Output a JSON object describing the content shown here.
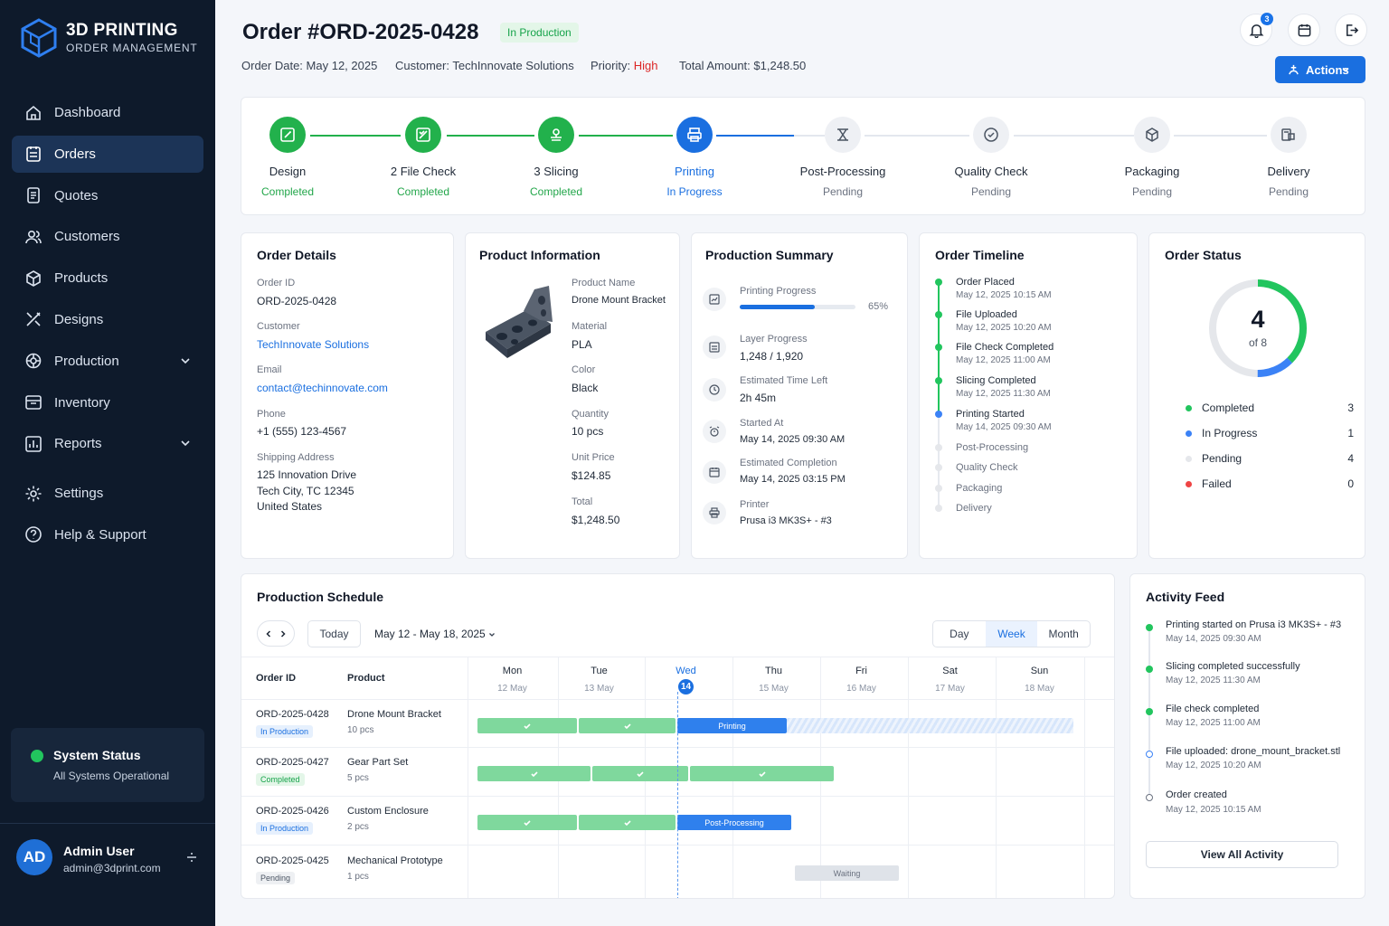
{
  "app": {
    "title": "3D PRINTING",
    "subtitle": "ORDER MANAGEMENT"
  },
  "nav": [
    {
      "label": "Dashboard",
      "icon": "home-icon"
    },
    {
      "label": "Orders",
      "icon": "clipboard-icon"
    },
    {
      "label": "Quotes",
      "icon": "document-icon"
    },
    {
      "label": "Customers",
      "icon": "users-icon"
    },
    {
      "label": "Products",
      "icon": "box-icon"
    },
    {
      "label": "Designs",
      "icon": "design-tools-icon"
    },
    {
      "label": "Production",
      "icon": "production-icon"
    },
    {
      "label": "Inventory",
      "icon": "inventory-icon"
    },
    {
      "label": "Reports",
      "icon": "chart-icon"
    },
    {
      "label": "Settings",
      "icon": "gear-icon"
    },
    {
      "label": "Help & Support",
      "icon": "help-icon"
    }
  ],
  "system": {
    "title": "System Status",
    "status": "All Systems Operational"
  },
  "user": {
    "initials": "AD",
    "name": "Admin User",
    "email": "admin@3dprint.com"
  },
  "header": {
    "title": "Order #ORD-2025-0428",
    "badge": "In Production",
    "order_date_label": "Order Date:",
    "order_date": "May 12, 2025",
    "customer_label": "Customer:",
    "customer": "TechInnovate Solutions",
    "priority_label": "Priority:",
    "priority": "High",
    "total_label": "Total Amount:",
    "total": "$1,248.50",
    "notifications": "3",
    "actions_label": "Actions"
  },
  "steps": [
    {
      "name": "Design",
      "status": "Completed",
      "icon": "design-icon"
    },
    {
      "name": "2 File Check",
      "status": "Completed",
      "icon": "file-check-icon"
    },
    {
      "name": "3 Slicing",
      "status": "Completed",
      "icon": "slicing-icon"
    },
    {
      "name": "Printing",
      "status": "In Progress",
      "icon": "printer-icon"
    },
    {
      "name": "Post-Processing",
      "status": "Pending",
      "icon": "post-processing-icon"
    },
    {
      "name": "Quality Check",
      "status": "Pending",
      "icon": "check-circle-icon"
    },
    {
      "name": "Packaging",
      "status": "Pending",
      "icon": "package-icon"
    },
    {
      "name": "Delivery",
      "status": "Pending",
      "icon": "delivery-icon"
    }
  ],
  "order_details": {
    "title": "Order Details",
    "order_id_label": "Order ID",
    "order_id": "ORD-2025-0428",
    "customer_label": "Customer",
    "customer": "TechInnovate Solutions",
    "email_label": "Email",
    "email": "contact@techinnovate.com",
    "phone_label": "Phone",
    "phone": "+1 (555) 123-4567",
    "address_label": "Shipping Address",
    "address_1": "125 Innovation Drive",
    "address_2": "Tech City, TC 12345",
    "address_3": "United States"
  },
  "product": {
    "title": "Product Information",
    "name_label": "Product Name",
    "name": "Drone Mount Bracket",
    "material_label": "Material",
    "material": "PLA",
    "color_label": "Color",
    "color": "Black",
    "quantity_label": "Quantity",
    "quantity": "10 pcs",
    "unit_price_label": "Unit Price",
    "unit_price": "$124.85",
    "total_label": "Total",
    "total": "$1,248.50"
  },
  "production_summary": {
    "title": "Production Summary",
    "progress_label": "Printing Progress",
    "progress_pct": "65%",
    "progress_value": 0.65,
    "layer_label": "Layer Progress",
    "layer": "1,248 / 1,920",
    "eta_label": "Estimated Time Left",
    "eta": "2h 45m",
    "started_label": "Started At",
    "started": "May 14, 2025 09:30 AM",
    "completion_label": "Estimated Completion",
    "completion": "May 14, 2025 03:15 PM",
    "printer_label": "Printer",
    "printer": "Prusa i3 MK3S+ - #3"
  },
  "timeline": {
    "title": "Order Timeline",
    "events": [
      {
        "label": "Order Placed",
        "date": "May 12, 2025 10:15 AM",
        "state": "done"
      },
      {
        "label": "File Uploaded",
        "date": "May 12, 2025 10:20 AM",
        "state": "done"
      },
      {
        "label": "File Check Completed",
        "date": "May 12, 2025 11:00 AM",
        "state": "done"
      },
      {
        "label": "Slicing Completed",
        "date": "May 12, 2025 11:30 AM",
        "state": "done"
      },
      {
        "label": "Printing Started",
        "date": "May 14, 2025 09:30 AM",
        "state": "current"
      },
      {
        "label": "Post-Processing",
        "date": "",
        "state": "pending"
      },
      {
        "label": "Quality Check",
        "date": "",
        "state": "pending"
      },
      {
        "label": "Packaging",
        "date": "",
        "state": "pending"
      },
      {
        "label": "Delivery",
        "date": "",
        "state": "pending"
      }
    ]
  },
  "order_status": {
    "title": "Order Status",
    "count": "4",
    "of": "of 8",
    "completed_fraction": 0.375,
    "in_progress_fraction": 0.125,
    "legend": [
      {
        "label": "Completed",
        "count": "3",
        "color": "#22c55e"
      },
      {
        "label": "In Progress",
        "count": "1",
        "color": "#3b82f6"
      },
      {
        "label": "Pending",
        "count": "4",
        "color": "#e5e7eb"
      },
      {
        "label": "Failed",
        "count": "0",
        "color": "#ef4444"
      }
    ]
  },
  "schedule": {
    "title": "Production Schedule",
    "today_label": "Today",
    "range": "May 12 - May 18, 2025",
    "views": [
      "Day",
      "Week",
      "Month"
    ],
    "col_order": "Order ID",
    "col_product": "Product",
    "days": [
      {
        "name": "Mon",
        "date": "12 May"
      },
      {
        "name": "Tue",
        "date": "13 May"
      },
      {
        "name": "Wed",
        "date": "14"
      },
      {
        "name": "Thu",
        "date": "15 May"
      },
      {
        "name": "Fri",
        "date": "16 May"
      },
      {
        "name": "Sat",
        "date": "17 May"
      },
      {
        "name": "Sun",
        "date": "18 May"
      }
    ],
    "rows": [
      {
        "id": "ORD-2025-0428",
        "status": "In Production",
        "product": "Drone Mount Bracket",
        "qty": "10 pcs",
        "bar_label": "Printing"
      },
      {
        "id": "ORD-2025-0427",
        "status": "Completed",
        "product": "Gear Part Set",
        "qty": "5 pcs",
        "bar_label": ""
      },
      {
        "id": "ORD-2025-0426",
        "status": "In Production",
        "product": "Custom Enclosure",
        "qty": "2 pcs",
        "bar_label": "Post-Processing"
      },
      {
        "id": "ORD-2025-0425",
        "status": "Pending",
        "product": "Mechanical Prototype",
        "qty": "1 pcs",
        "bar_label": "Waiting"
      }
    ]
  },
  "activity": {
    "title": "Activity Feed",
    "items": [
      {
        "text": "Printing started on Prusa i3 MK3S+ - #3",
        "date": "May 14, 2025 09:30 AM"
      },
      {
        "text": "Slicing completed successfully",
        "date": "May 12, 2025 11:30 AM"
      },
      {
        "text": "File check completed",
        "date": "May 12, 2025 11:00 AM"
      },
      {
        "text": "File uploaded: drone_mount_bracket.stl",
        "date": "May 12, 2025 10:20 AM"
      },
      {
        "text": "Order created",
        "date": "May 12, 2025 10:15 AM"
      }
    ],
    "view_all": "View All Activity"
  }
}
